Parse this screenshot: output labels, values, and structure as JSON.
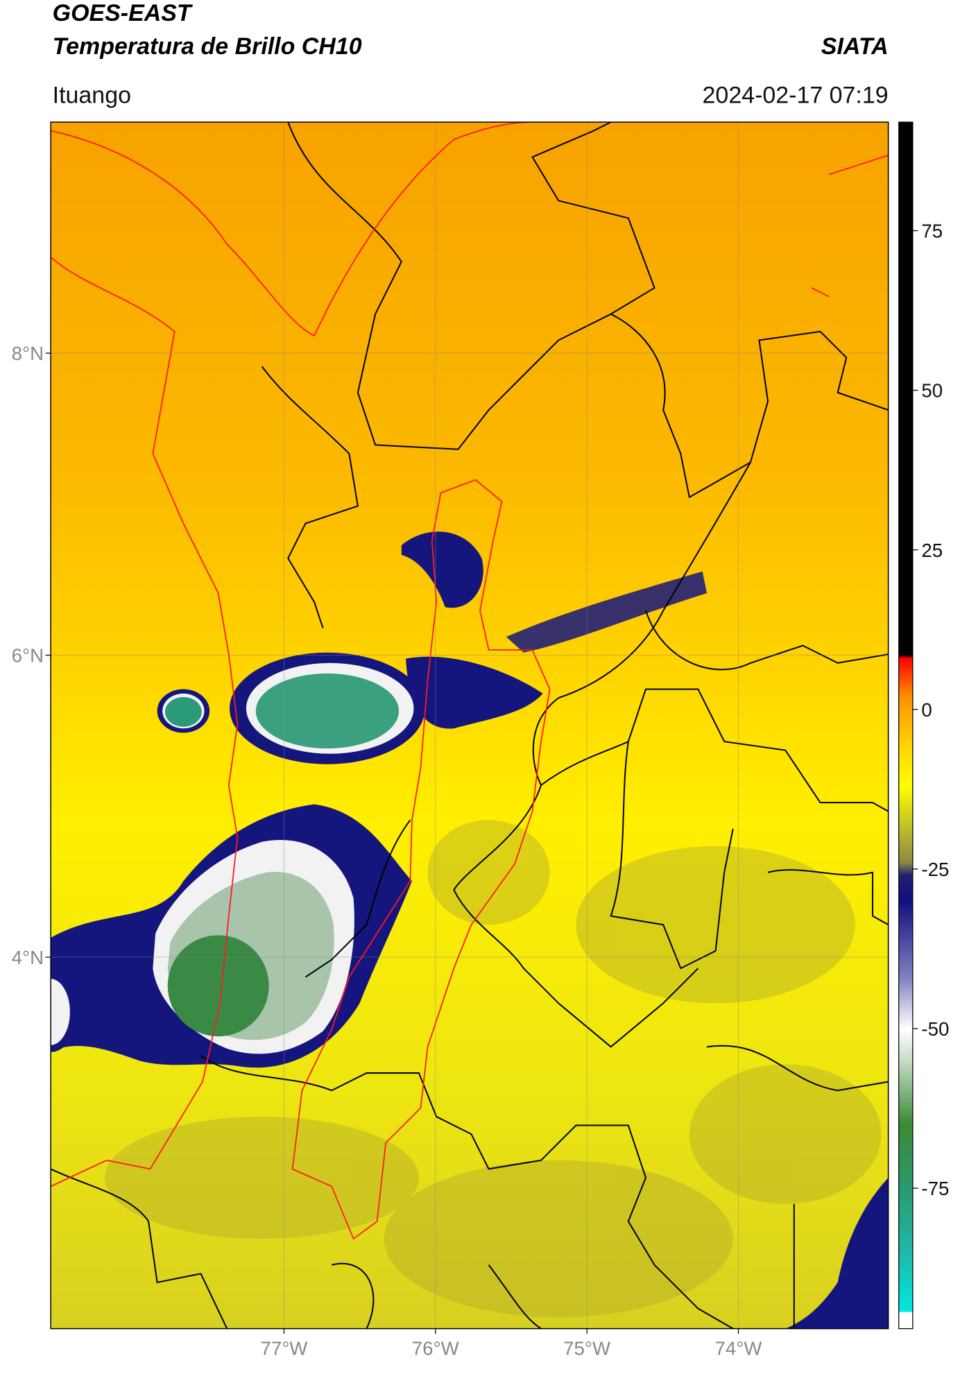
{
  "header": {
    "title_lines": [
      "GOES-EAST",
      "Temperatura de Brillo CH10"
    ],
    "brand": "SIATA",
    "location": "Ituango",
    "timestamp": "2024-02-17 07:19"
  },
  "map": {
    "xlim": [
      -78.54,
      -73.01
    ],
    "ylim": [
      1.54,
      9.53
    ],
    "xticks": [
      {
        "value": -77,
        "label": "77°W"
      },
      {
        "value": -76,
        "label": "76°W"
      },
      {
        "value": -75,
        "label": "75°W"
      },
      {
        "value": -74,
        "label": "74°W"
      }
    ],
    "yticks": [
      {
        "value": 8,
        "label": "8°N"
      },
      {
        "value": 6,
        "label": "6°N"
      },
      {
        "value": 4,
        "label": "4°N"
      }
    ],
    "grid": true
  },
  "colorbar": {
    "clim": [
      -97,
      92
    ],
    "ticks": [
      75,
      50,
      25,
      0,
      -25,
      -50,
      -75
    ],
    "colormap": [
      {
        "value": -97,
        "color": "#ffffff"
      },
      {
        "value": -94.5,
        "color": "#ffffff"
      },
      {
        "value": -94.3,
        "color": "#00e8e0"
      },
      {
        "value": -85,
        "color": "#20b8a8"
      },
      {
        "value": -75,
        "color": "#2a9a70"
      },
      {
        "value": -65,
        "color": "#3a8a35"
      },
      {
        "value": -55,
        "color": "#c8dcc8"
      },
      {
        "value": -50,
        "color": "#ffffff"
      },
      {
        "value": -42,
        "color": "#8080c0"
      },
      {
        "value": -30,
        "color": "#101080"
      },
      {
        "value": -26,
        "color": "#202070"
      },
      {
        "value": -24,
        "color": "#8a8a40"
      },
      {
        "value": -20,
        "color": "#b0b030"
      },
      {
        "value": -12,
        "color": "#ffff00"
      },
      {
        "value": -5,
        "color": "#ffd000"
      },
      {
        "value": 2,
        "color": "#ff9000"
      },
      {
        "value": 8,
        "color": "#ff0000"
      },
      {
        "value": 8.5,
        "color": "#000000"
      },
      {
        "value": 92,
        "color": "#000000"
      }
    ]
  }
}
